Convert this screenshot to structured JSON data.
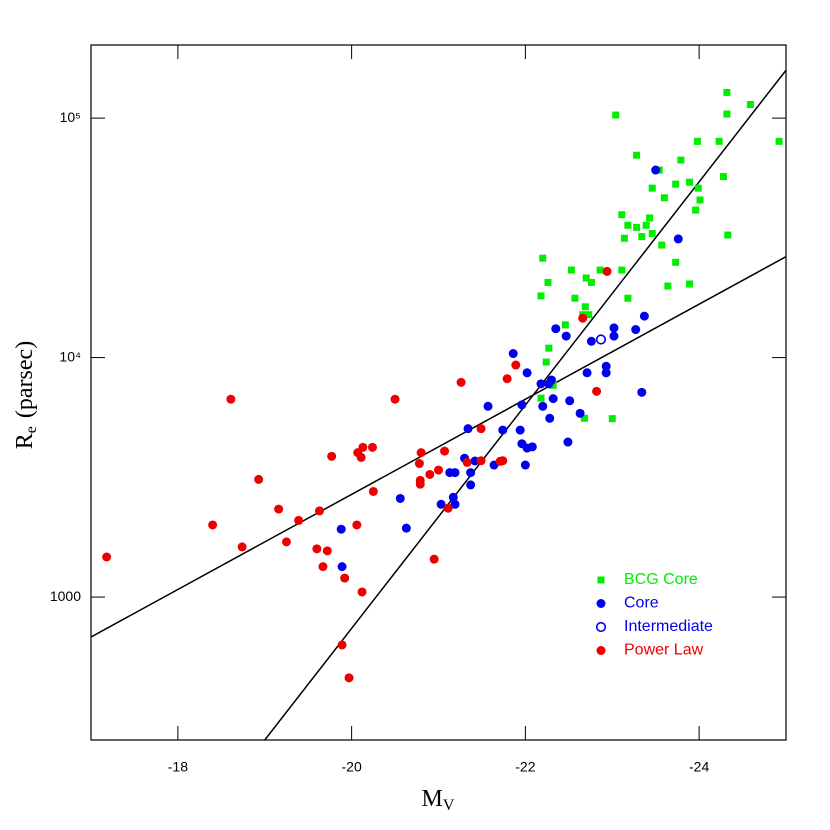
{
  "chart_data": {
    "type": "scatter",
    "xlabel": {
      "text": "M",
      "subscript": "V"
    },
    "ylabel": {
      "text": "R",
      "subscript": "e",
      "suffix": "(parsec)"
    },
    "xlim": [
      -17,
      -25
    ],
    "xticks": [
      -18,
      -20,
      -22,
      -24
    ],
    "ylim": [
      253,
      202000
    ],
    "log_y": true,
    "yticks": [
      1000,
      {
        "value": 10000,
        "label": "10⁴"
      },
      {
        "value": 100000,
        "label": "10⁵"
      }
    ],
    "legend_position": "lower right",
    "fit_lines": [
      {
        "x": [
          -17,
          -25
        ],
        "y": [
          681,
          26400
        ],
        "color": "#000000"
      },
      {
        "x": [
          -19.0,
          -25
        ],
        "y": [
          253,
          158500
        ],
        "color": "#000000"
      }
    ],
    "series": [
      {
        "name": "BCG Core",
        "color": "#00ee00",
        "marker": "square",
        "x": [
          -23.04,
          -24.32,
          -24.59,
          -24.32,
          -24.92,
          -23.98,
          -24.23,
          -23.28,
          -23.79,
          -23.54,
          -23.89,
          -23.73,
          -23.46,
          -23.99,
          -24.28,
          -23.6,
          -24.01,
          -23.96,
          -23.11,
          -23.43,
          -23.39,
          -23.18,
          -23.28,
          -23.46,
          -24.33,
          -23.14,
          -23.34,
          -23.57,
          -23.73,
          -22.2,
          -22.53,
          -23.11,
          -22.86,
          -22.7,
          -22.76,
          -22.26,
          -23.64,
          -23.89,
          -22.18,
          -23.18,
          -22.57,
          -22.69,
          -22.66,
          -22.73,
          -22.46,
          -22.27,
          -22.24,
          -22.32,
          -23.0,
          -22.68,
          -22.18
        ],
        "values": [
          103000,
          128000,
          114000,
          104000,
          80000,
          80000,
          80000,
          70000,
          66800,
          60700,
          54000,
          53000,
          51000,
          51000,
          57000,
          46500,
          45500,
          41300,
          39500,
          38300,
          35700,
          35700,
          35000,
          33000,
          32500,
          31500,
          32000,
          29500,
          25000,
          26000,
          23200,
          23200,
          23200,
          21500,
          20600,
          20600,
          19900,
          20300,
          18100,
          17700,
          17700,
          16300,
          15100,
          15100,
          13700,
          10950,
          9580,
          7660,
          5560,
          5580,
          6770
        ]
      },
      {
        "name": "Core",
        "color": "#0000ee",
        "marker": "circle",
        "x": [
          -23.5,
          -23.76,
          -23.37,
          -23.02,
          -23.27,
          -23.02,
          -22.76,
          -22.35,
          -22.47,
          -22.93,
          -22.93,
          -22.71,
          -23.34,
          -21.86,
          -22.02,
          -22.18,
          -22.3,
          -22.27,
          -22.32,
          -22.51,
          -22.2,
          -21.96,
          -21.57,
          -22.63,
          -22.28,
          -21.94,
          -21.74,
          -21.34,
          -22.49,
          -21.96,
          -22.08,
          -22.02,
          -21.3,
          -21.42,
          -21.64,
          -22.0,
          -21.37,
          -21.13,
          -21.19,
          -21.37,
          -21.17,
          -21.03,
          -21.19,
          -20.56,
          -20.63,
          -19.88,
          -19.89
        ],
        "values": [
          60700,
          31300,
          14900,
          13300,
          13100,
          12300,
          11700,
          13200,
          12300,
          9200,
          8640,
          8640,
          7160,
          10400,
          8640,
          7770,
          8060,
          7770,
          6740,
          6600,
          6260,
          6350,
          6260,
          5850,
          5580,
          4980,
          4980,
          5050,
          4440,
          4370,
          4240,
          4190,
          3800,
          3700,
          3560,
          3560,
          3310,
          3310,
          3310,
          2940,
          2610,
          2440,
          2440,
          2580,
          1940,
          1920,
          1340
        ]
      },
      {
        "name": "Intermediate",
        "color": "#0000ee",
        "marker": "open-circle",
        "x": [
          -22.87
        ],
        "values": [
          11900
        ]
      },
      {
        "name": "Power Law",
        "color": "#ee0000",
        "marker": "circle",
        "x": [
          -22.94,
          -22.66,
          -22.82,
          -21.89,
          -21.79,
          -21.26,
          -20.5,
          -18.61,
          -21.49,
          -20.13,
          -20.24,
          -20.07,
          -20.11,
          -19.77,
          -21.07,
          -20.8,
          -21.33,
          -21.49,
          -21.71,
          -21.74,
          -20.78,
          -21.0,
          -20.9,
          -20.79,
          -20.79,
          -18.93,
          -20.25,
          -21.11,
          -19.16,
          -19.63,
          -19.39,
          -18.4,
          -20.06,
          -19.25,
          -18.74,
          -19.6,
          -19.72,
          -19.67,
          -17.18,
          -20.95,
          -19.92,
          -20.12,
          -19.89,
          -19.97
        ],
        "values": [
          22900,
          14600,
          7230,
          9310,
          8160,
          7880,
          6700,
          6700,
          5050,
          4220,
          4220,
          4010,
          3830,
          3870,
          4070,
          4010,
          3650,
          3710,
          3690,
          3710,
          3610,
          3390,
          3250,
          3070,
          2960,
          3100,
          2760,
          2350,
          2330,
          2290,
          2090,
          2000,
          2000,
          1700,
          1620,
          1590,
          1560,
          1340,
          1470,
          1440,
          1200,
          1050,
          631,
          460
        ]
      }
    ]
  }
}
